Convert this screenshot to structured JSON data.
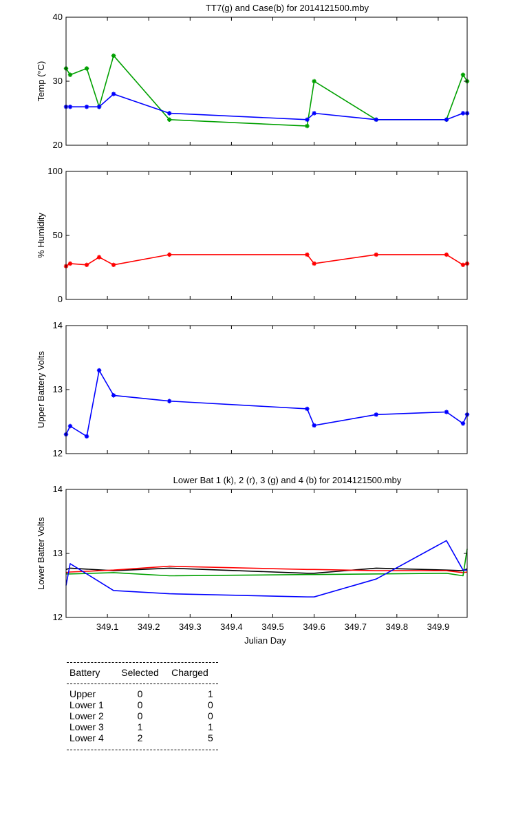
{
  "chart_data": [
    {
      "type": "line",
      "title": "TT7(g) and Case(b) for 2014121500.mby",
      "xlabel": "",
      "ylabel": "Temp  (°C)",
      "xlim": [
        349.0,
        349.97
      ],
      "ylim": [
        20,
        40
      ],
      "yticks": [
        "20",
        "30",
        "40"
      ],
      "grid": false,
      "series": [
        {
          "color": "#00a000",
          "marker": "*",
          "x": [
            349.0,
            349.01,
            349.05,
            349.08,
            349.115,
            349.25,
            349.583,
            349.6,
            349.75,
            349.92,
            349.96,
            349.97
          ],
          "y": [
            32,
            31,
            32,
            26,
            34,
            24,
            23,
            30,
            24,
            24,
            31,
            30
          ]
        },
        {
          "color": "#0000ff",
          "marker": "*",
          "x": [
            349.0,
            349.01,
            349.05,
            349.08,
            349.115,
            349.25,
            349.583,
            349.6,
            349.75,
            349.92,
            349.96,
            349.97
          ],
          "y": [
            26,
            26,
            26,
            26,
            28,
            25,
            24,
            25,
            24,
            24,
            25,
            25
          ]
        }
      ]
    },
    {
      "type": "line",
      "title": "",
      "xlabel": "",
      "ylabel": "% Humidity",
      "xlim": [
        349.0,
        349.97
      ],
      "ylim": [
        0,
        100
      ],
      "yticks": [
        "0",
        "50",
        "100"
      ],
      "grid": false,
      "series": [
        {
          "color": "#ff0000",
          "marker": "*",
          "x": [
            349.0,
            349.01,
            349.05,
            349.08,
            349.115,
            349.25,
            349.583,
            349.6,
            349.75,
            349.92,
            349.96,
            349.97
          ],
          "y": [
            26,
            28,
            27,
            33,
            27,
            35,
            35,
            28,
            35,
            35,
            27,
            28
          ]
        }
      ]
    },
    {
      "type": "line",
      "title": "",
      "xlabel": "",
      "ylabel": "Upper Battery Volts",
      "xlim": [
        349.0,
        349.97
      ],
      "ylim": [
        12,
        14
      ],
      "yticks": [
        "12",
        "13",
        "14"
      ],
      "grid": false,
      "series": [
        {
          "color": "#0000ff",
          "marker": "*",
          "x": [
            349.0,
            349.01,
            349.05,
            349.08,
            349.115,
            349.25,
            349.583,
            349.6,
            349.75,
            349.92,
            349.96,
            349.97
          ],
          "y": [
            12.3,
            12.43,
            12.27,
            13.3,
            12.91,
            12.82,
            12.7,
            12.44,
            12.61,
            12.65,
            12.47,
            12.61
          ]
        }
      ]
    },
    {
      "type": "line",
      "title": "Lower Bat 1 (k), 2 (r), 3 (g) and 4 (b) for 2014121500.mby",
      "xlabel": "Julian Day",
      "ylabel": "Lower Batter Volts",
      "xlim": [
        349.0,
        349.97
      ],
      "ylim": [
        12,
        14
      ],
      "yticks": [
        "12",
        "13",
        "14"
      ],
      "xticks": [
        "349.1",
        "349.2",
        "349.3",
        "349.4",
        "349.5",
        "349.6",
        "349.7",
        "349.8",
        "349.9"
      ],
      "grid": false,
      "series": [
        {
          "color": "#000000",
          "x": [
            349.0,
            349.01,
            349.115,
            349.25,
            349.583,
            349.6,
            349.75,
            349.92,
            349.96,
            349.97
          ],
          "y": [
            12.75,
            12.77,
            12.73,
            12.77,
            12.69,
            12.69,
            12.77,
            12.74,
            12.73,
            12.76
          ]
        },
        {
          "color": "#ff0000",
          "x": [
            349.0,
            349.01,
            349.115,
            349.25,
            349.583,
            349.6,
            349.75,
            349.92,
            349.96,
            349.97
          ],
          "y": [
            12.7,
            12.71,
            12.74,
            12.8,
            12.75,
            12.75,
            12.73,
            12.73,
            12.7,
            12.71
          ]
        },
        {
          "color": "#00a000",
          "x": [
            349.0,
            349.01,
            349.115,
            349.25,
            349.583,
            349.6,
            349.75,
            349.92,
            349.96,
            349.97
          ],
          "y": [
            12.68,
            12.68,
            12.7,
            12.65,
            12.67,
            12.67,
            12.68,
            12.69,
            12.65,
            13.07
          ]
        },
        {
          "color": "#0000ff",
          "x": [
            349.0,
            349.01,
            349.115,
            349.25,
            349.583,
            349.6,
            349.75,
            349.92,
            349.96,
            349.97
          ],
          "y": [
            12.5,
            12.84,
            12.42,
            12.37,
            12.32,
            12.32,
            12.6,
            13.2,
            12.74,
            12.74
          ]
        }
      ]
    }
  ],
  "battery_table": {
    "headers": [
      "Battery",
      "Selected",
      "Charged"
    ],
    "rows": [
      [
        "Upper",
        "0",
        "1"
      ],
      [
        "Lower 1",
        "0",
        "0"
      ],
      [
        "Lower 2",
        "0",
        "0"
      ],
      [
        "Lower 3",
        "1",
        "1"
      ],
      [
        "Lower 4",
        "2",
        "5"
      ]
    ]
  }
}
